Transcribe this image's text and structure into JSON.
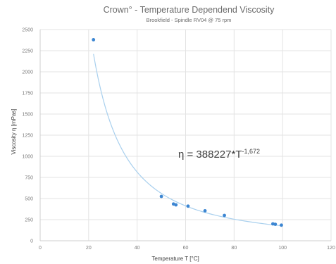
{
  "chart_data": {
    "type": "scatter",
    "title": "Crown° - Temperature Dependend Viscosity",
    "subtitle": "Brookfield - Spindle RV04 @ 75 rpm",
    "xlabel": "Temperature T [°C]",
    "ylabel": "Viscosity η [mPas]",
    "xlim": [
      0,
      120
    ],
    "ylim": [
      0,
      2500
    ],
    "xticks": [
      "0",
      "20",
      "40",
      "60",
      "80",
      "100",
      "120"
    ],
    "yticks": [
      "0",
      "250",
      "500",
      "750",
      "1000",
      "1250",
      "1500",
      "1750",
      "2000",
      "2250",
      "2500"
    ],
    "grid": true,
    "legend": "none",
    "points": [
      {
        "x": 22,
        "y": 2380
      },
      {
        "x": 50,
        "y": 525
      },
      {
        "x": 55,
        "y": 435
      },
      {
        "x": 56,
        "y": 425
      },
      {
        "x": 61,
        "y": 410
      },
      {
        "x": 68,
        "y": 355
      },
      {
        "x": 76,
        "y": 300
      },
      {
        "x": 96,
        "y": 200
      },
      {
        "x": 97,
        "y": 195
      },
      {
        "x": 99.5,
        "y": 185
      }
    ],
    "trendline": {
      "type": "power",
      "coefficient": 388227,
      "exponent": -1.672,
      "x_range": [
        22,
        100
      ]
    },
    "equation_text": "η = 388227*T",
    "equation_exponent": "-1,672",
    "colors": {
      "points": "#3c86d2",
      "trendline": "#a9d0ee",
      "grid": "#e3e3e3",
      "axis": "#cfcfcf"
    }
  }
}
